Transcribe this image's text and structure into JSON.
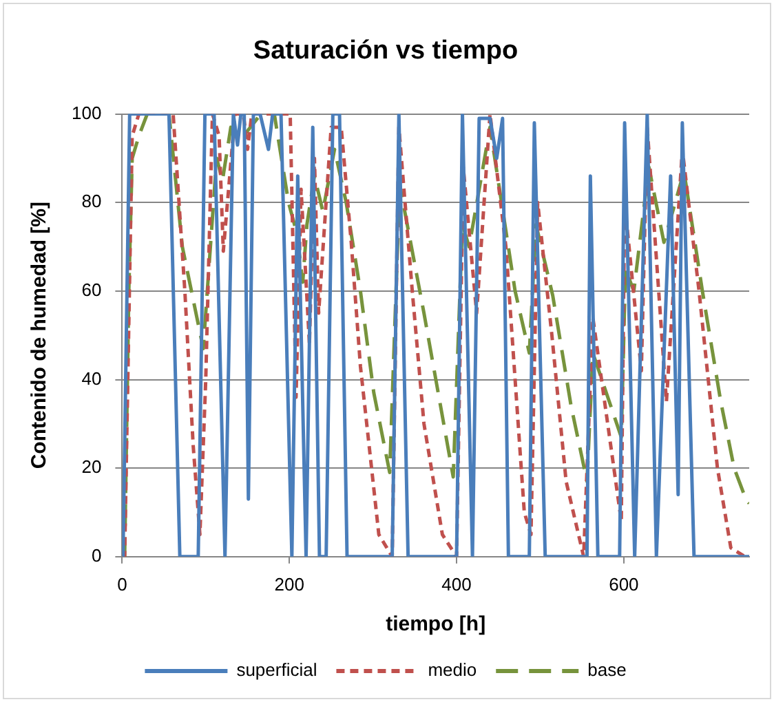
{
  "chart_data": {
    "type": "line",
    "title": "Saturación vs tiempo",
    "xlabel": "tiempo [h]",
    "ylabel": "Contenido de humedad [%]",
    "xlim": [
      0,
      750
    ],
    "xticks": [
      0,
      200,
      400,
      600
    ],
    "ylim": [
      0,
      100
    ],
    "yticks": [
      0,
      20,
      40,
      60,
      80,
      100
    ],
    "grid": "y",
    "legend": "bottom",
    "marker": "none",
    "series": [
      {
        "name": "superficial",
        "color": "#4a7ebb",
        "line_style": "solid",
        "x": [
          0,
          1,
          9,
          56,
          69,
          91,
          99,
          110,
          123,
          133,
          138,
          142,
          146,
          151,
          157,
          165,
          175,
          180,
          190,
          203,
          210,
          220,
          228,
          236,
          244,
          252,
          260,
          269,
          323,
          331,
          342,
          400,
          407,
          419,
          427,
          440,
          448,
          455,
          462,
          487,
          493,
          506,
          556,
          560,
          569,
          595,
          601,
          613,
          628,
          639,
          656,
          665,
          670,
          684,
          750
        ],
        "values": [
          0,
          0,
          100,
          100,
          0,
          0,
          100,
          100,
          0,
          100,
          93,
          100,
          100,
          13,
          100,
          100,
          92,
          100,
          100,
          0,
          86,
          0,
          97,
          0,
          0,
          100,
          100,
          0,
          0,
          100,
          0,
          0,
          100,
          0,
          99,
          99,
          90,
          99,
          0,
          0,
          98,
          0,
          0,
          86,
          0,
          0,
          98,
          0,
          100,
          0,
          86,
          14,
          98,
          0,
          0
        ]
      },
      {
        "name": "medio",
        "color": "#c0504d",
        "line_style": "dashed",
        "x": [
          0,
          3,
          12,
          20,
          61,
          75,
          85,
          93,
          100,
          108,
          116,
          121,
          135,
          145,
          150,
          155,
          175,
          201,
          208,
          214,
          224,
          230,
          235,
          250,
          262,
          274,
          285,
          307,
          323,
          331,
          347,
          361,
          383,
          400,
          408,
          424,
          440,
          459,
          470,
          481,
          489,
          497,
          514,
          531,
          552,
          563,
          597,
          601,
          621,
          628,
          651,
          670,
          690,
          712,
          728,
          745,
          750
        ],
        "values": [
          0,
          0,
          95,
          100,
          100,
          60,
          25,
          5,
          40,
          100,
          95,
          69,
          100,
          100,
          92,
          100,
          100,
          100,
          36,
          83,
          48,
          90,
          55,
          97,
          97,
          71,
          43,
          5,
          0,
          97,
          60,
          30,
          5,
          0,
          88,
          55,
          100,
          70,
          40,
          10,
          5,
          80,
          50,
          17,
          0,
          54,
          8,
          80,
          42,
          97,
          35,
          92,
          60,
          20,
          2,
          0,
          0
        ]
      },
      {
        "name": "base",
        "color": "#77933c",
        "line_style": "long-dashed",
        "x": [
          0,
          3,
          8,
          12,
          20,
          30,
          56,
          72,
          97,
          113,
          120,
          130,
          145,
          166,
          182,
          199,
          209,
          216,
          221,
          230,
          240,
          254,
          268,
          285,
          301,
          320,
          332,
          361,
          396,
          407,
          415,
          440,
          470,
          487,
          495,
          515,
          537,
          556,
          563,
          597,
          602,
          612,
          630,
          648,
          672,
          694,
          716,
          732,
          746,
          750
        ],
        "values": [
          0,
          0,
          60,
          90,
          95,
          100,
          100,
          70,
          47,
          90,
          85,
          97,
          95,
          100,
          100,
          80,
          73,
          62,
          75,
          86,
          78,
          92,
          80,
          60,
          37,
          19,
          84,
          55,
          18,
          75,
          70,
          97,
          60,
          46,
          75,
          59,
          34,
          17,
          46,
          27,
          65,
          60,
          88,
          71,
          87,
          60,
          35,
          20,
          13,
          12
        ]
      }
    ]
  }
}
